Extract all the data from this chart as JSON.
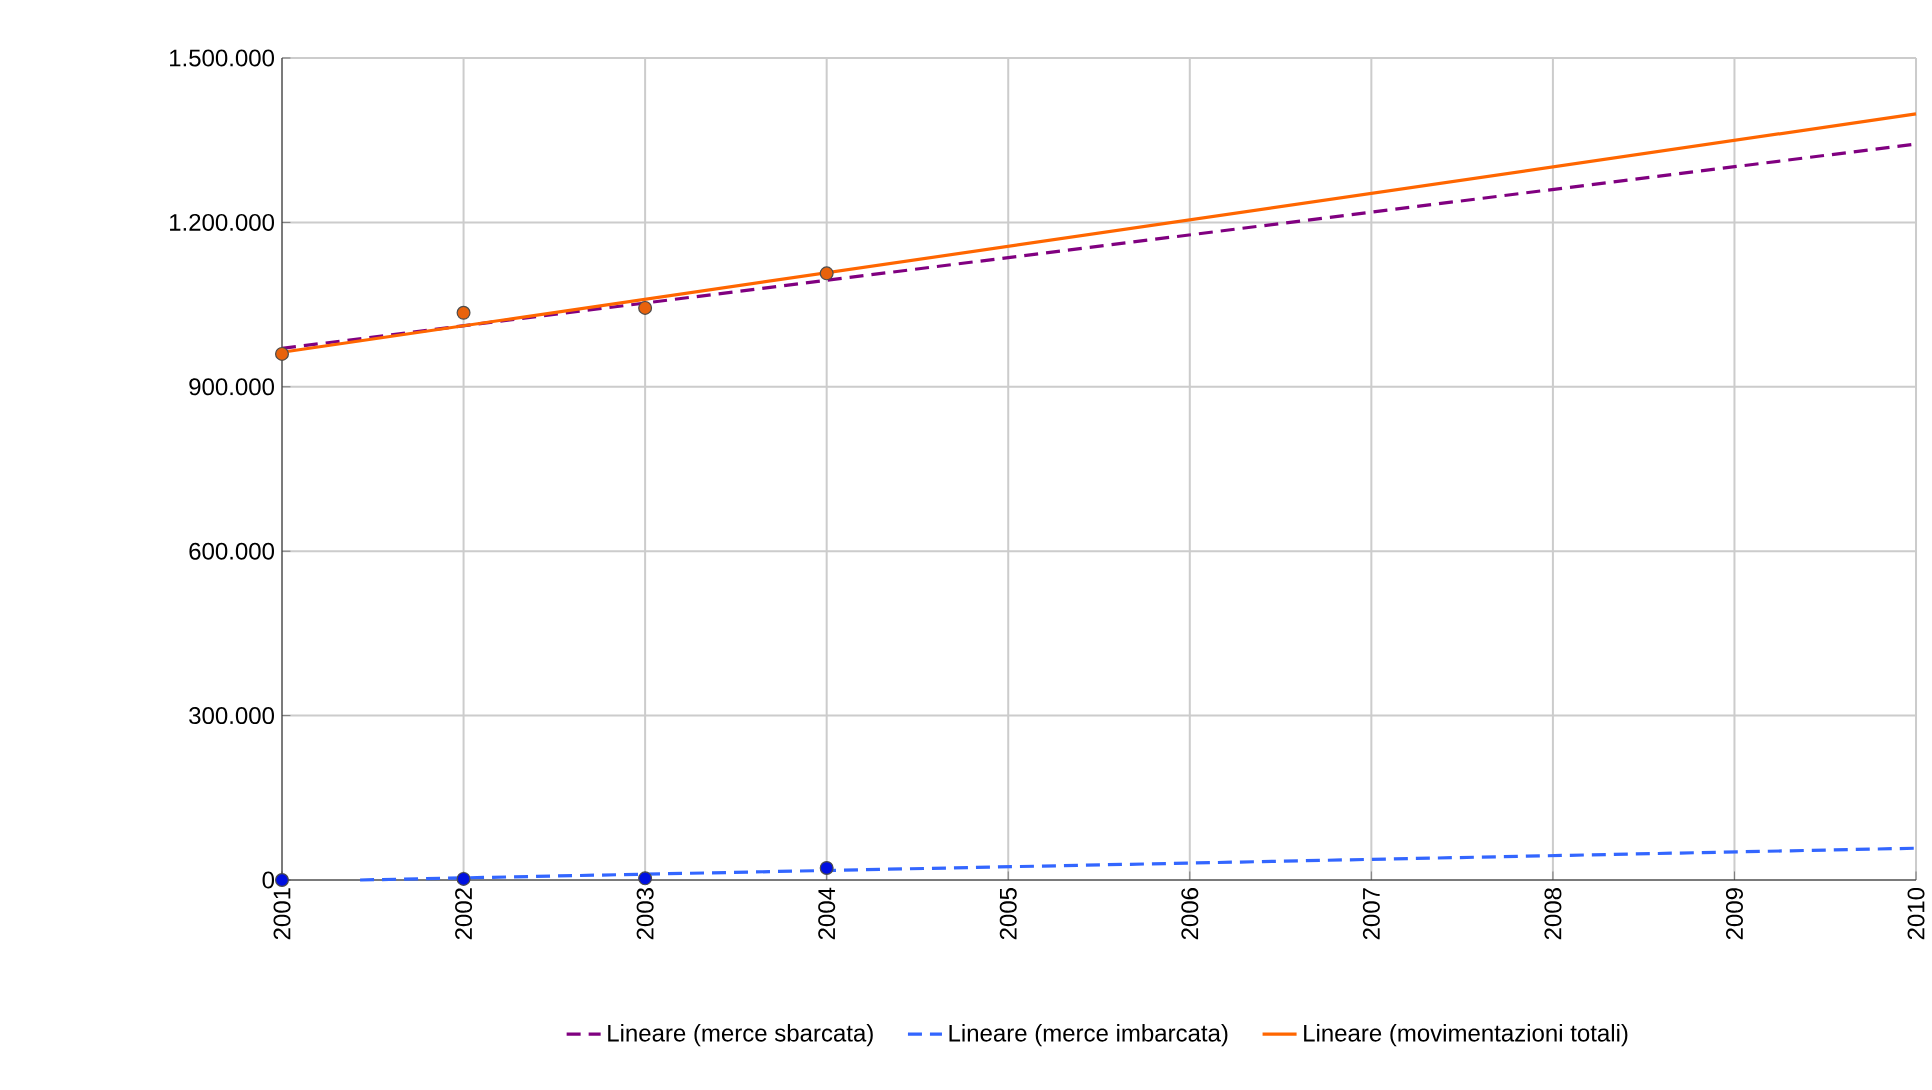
{
  "chart_data": {
    "type": "line",
    "xlim": [
      2001,
      2010
    ],
    "xticks": [
      2001,
      2002,
      2003,
      2004,
      2005,
      2006,
      2007,
      2008,
      2009,
      2010
    ],
    "ylim": [
      0,
      1500000
    ],
    "yticks": [
      0,
      {
        "value": 300000,
        "label": "300.000"
      },
      {
        "value": 600000,
        "label": "600.000"
      },
      {
        "value": 900000,
        "label": "900.000"
      },
      {
        "value": 1200000,
        "label": "1.200.000"
      },
      {
        "value": 1500000,
        "label": "1.500.000"
      }
    ],
    "grid": true,
    "legend": "bottom",
    "series": [
      {
        "name": "Lineare (merce sbarcata)",
        "line_style": "dashed",
        "color": "#800080",
        "x": [
          2001,
          2010
        ],
        "values": [
          970000,
          1343000
        ]
      },
      {
        "name": "Lineare (merce imbarcata)",
        "line_style": "dashed",
        "color": "#3366ff",
        "x": [
          2001.43,
          2010
        ],
        "values": [
          0,
          58000
        ]
      },
      {
        "name": "Lineare (movimentazioni totali)",
        "line_style": "solid",
        "color": "#ff6600",
        "x": [
          2001,
          2010
        ],
        "values": [
          963000,
          1398000
        ]
      },
      {
        "type": "scatter",
        "marker": "circle",
        "color": "#e8620c",
        "x": [
          2001,
          2002,
          2003,
          2004
        ],
        "values": [
          960000,
          1035000,
          1044000,
          1107000
        ]
      },
      {
        "type": "scatter",
        "marker": "circle",
        "color": "#0010e0",
        "x": [
          2001,
          2002,
          2003,
          2004
        ],
        "values": [
          0,
          2000,
          3000,
          22000
        ]
      }
    ]
  }
}
